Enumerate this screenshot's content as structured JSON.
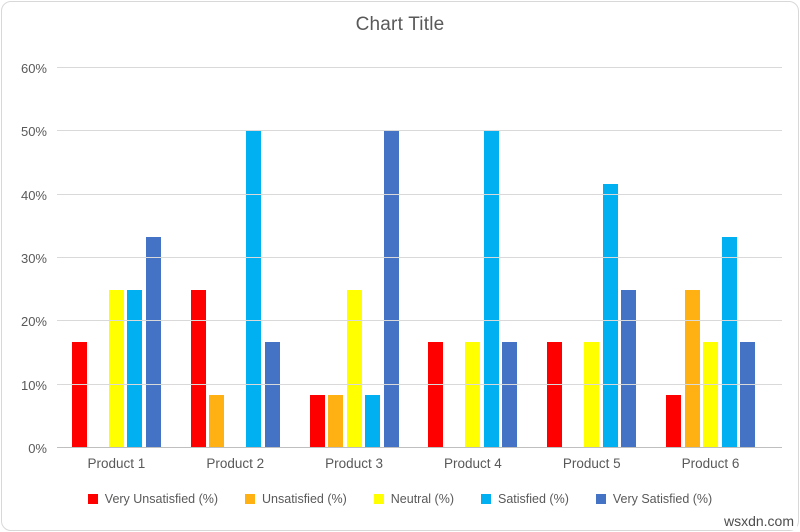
{
  "watermark": "wsxdn.com",
  "colors": {
    "gridline": "#d9d9d9",
    "axis_line": "#bfbfbf",
    "text": "#595959",
    "border": "#d8d8d8"
  },
  "chart_data": {
    "type": "bar",
    "title": "Chart Title",
    "categories": [
      "Product 1",
      "Product 2",
      "Product 3",
      "Product 4",
      "Product 5",
      "Product 6"
    ],
    "series": [
      {
        "name": "Very Unsatisfied (%)",
        "color": "#ff0000",
        "values": [
          16.67,
          25,
          8.33,
          16.67,
          16.67,
          8.33
        ]
      },
      {
        "name": "Unsatisfied (%)",
        "color": "#ffb114",
        "values": [
          0,
          8.33,
          8.33,
          0,
          0,
          25
        ]
      },
      {
        "name": "Neutral (%)",
        "color": "#ffff00",
        "values": [
          25,
          0,
          25,
          16.67,
          16.67,
          16.67
        ]
      },
      {
        "name": "Satisfied (%)",
        "color": "#00b0f0",
        "values": [
          25,
          50,
          8.33,
          50,
          41.67,
          33.33
        ]
      },
      {
        "name": "Very Satisfied (%)",
        "color": "#4472c4",
        "values": [
          33.33,
          16.67,
          50,
          16.67,
          25,
          16.67
        ]
      }
    ],
    "xlabel": "",
    "ylabel": "",
    "ylim": [
      0,
      60
    ],
    "ytick_labels": [
      "0%",
      "10%",
      "20%",
      "30%",
      "40%",
      "50%",
      "60%"
    ],
    "ytick_values": [
      0,
      10,
      20,
      30,
      40,
      50,
      60
    ],
    "grid": true,
    "legend_position": "bottom"
  }
}
